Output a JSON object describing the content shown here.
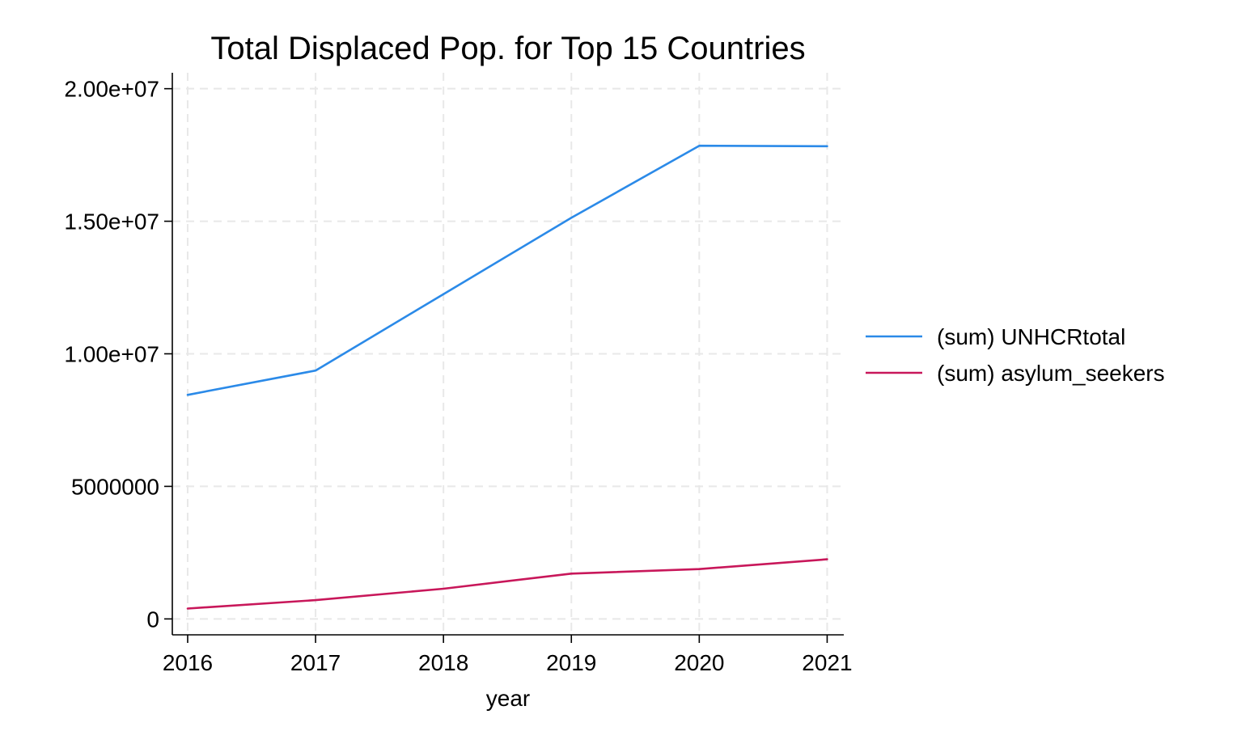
{
  "chart_data": {
    "type": "line",
    "title": "Total Displaced Pop. for Top 15 Countries",
    "xlabel": "year",
    "ylabel": "",
    "x": [
      2016,
      2017,
      2018,
      2019,
      2020,
      2021
    ],
    "xlim": [
      2015.88,
      2021.13
    ],
    "ylim": [
      -600000,
      20600000
    ],
    "xticks": [
      {
        "value": 2016,
        "label": "2016"
      },
      {
        "value": 2017,
        "label": "2017"
      },
      {
        "value": 2018,
        "label": "2018"
      },
      {
        "value": 2019,
        "label": "2019"
      },
      {
        "value": 2020,
        "label": "2020"
      },
      {
        "value": 2021,
        "label": "2021"
      }
    ],
    "yticks": [
      {
        "value": 0,
        "label": "0"
      },
      {
        "value": 5000000,
        "label": "5000000"
      },
      {
        "value": 10000000,
        "label": "1.00e+07"
      },
      {
        "value": 15000000,
        "label": "1.50e+07"
      },
      {
        "value": 20000000,
        "label": "2.00e+07"
      }
    ],
    "grid": true,
    "legend_position": "right",
    "series": [
      {
        "name": "(sum) UNHCRtotal",
        "color": "#2b8ae8",
        "values": [
          8450000,
          9370000,
          12250000,
          15130000,
          17850000,
          17830000
        ]
      },
      {
        "name": "(sum) asylum_seekers",
        "color": "#c8175a",
        "values": [
          390000,
          710000,
          1140000,
          1710000,
          1880000,
          2250000
        ]
      }
    ]
  }
}
